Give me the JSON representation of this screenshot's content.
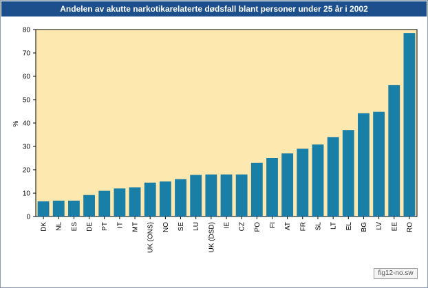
{
  "chart_data": {
    "type": "bar",
    "title": "Andelen av akutte narkotikarelaterte dødsfall blant personer under 25 år i 2002",
    "xlabel": "",
    "ylabel": "%",
    "ylim": [
      0,
      80
    ],
    "yticks": [
      0,
      10,
      20,
      30,
      40,
      50,
      60,
      70,
      80
    ],
    "grid": false,
    "categories": [
      "DK",
      "NL",
      "ES",
      "DE",
      "PT",
      "IT",
      "MT",
      "UK (ONS)",
      "NO",
      "SE",
      "LU",
      "UK (DSD)",
      "IE",
      "CZ",
      "PO",
      "FI",
      "AT",
      "FR",
      "SL",
      "LT",
      "EL",
      "BG",
      "LV",
      "EE",
      "RO"
    ],
    "values": [
      6.5,
      6.8,
      6.8,
      9.2,
      11,
      12,
      12.5,
      14.5,
      15,
      16,
      17.8,
      18,
      18,
      18,
      23,
      25,
      27,
      29,
      30.8,
      34,
      37,
      44.2,
      44.8,
      56.2,
      78.5
    ],
    "colors": {
      "bar": "#1a7fa6",
      "plot_background": "#fde8b0",
      "title_bar": "#1c4f8c"
    }
  },
  "badge": {
    "label": "fig12-no.sw"
  }
}
